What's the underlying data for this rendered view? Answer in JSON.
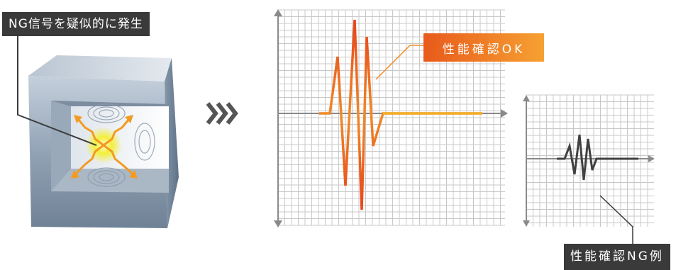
{
  "labels": {
    "simulate_ng": "NG信号を疑似的に発生",
    "performance_ok": "性能確認OK",
    "performance_ng": "性能確認NG例"
  },
  "colors": {
    "ok_gradient_start": "#e85a1b",
    "ok_gradient_end": "#f6a132",
    "dark_label": "#3a3a3a",
    "grid_line": "#c8c8c8",
    "axis": "#8a8a8a",
    "ng_waveform": "#404040",
    "arrow_marks": "#555555"
  },
  "icons": {
    "detector": "metal-detector-illustration",
    "signal": "signal-burst-icon",
    "flow_arrows": "triple-chevron-right-icon"
  }
}
